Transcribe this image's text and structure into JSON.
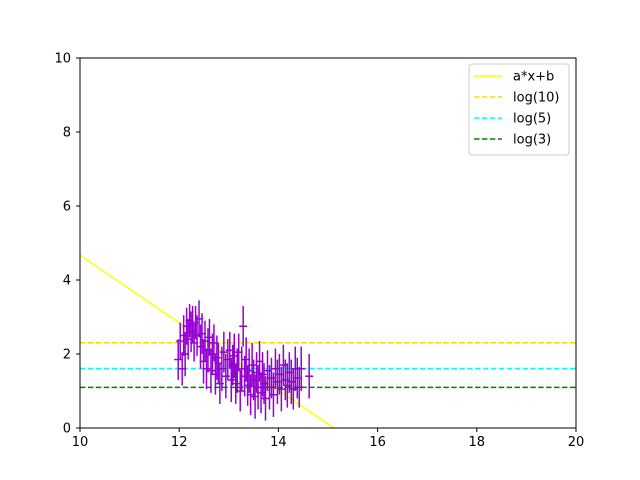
{
  "chart_data": {
    "type": "scatter",
    "title": "",
    "xlabel": "",
    "ylabel": "",
    "xlim": [
      10,
      20
    ],
    "ylim": [
      0,
      10
    ],
    "xticks": [
      "10",
      "12",
      "14",
      "16",
      "18",
      "20"
    ],
    "yticks": [
      "0",
      "2",
      "4",
      "6",
      "8",
      "10"
    ],
    "grid": false,
    "legend_position": "top-right",
    "colors": {
      "fit": "#ffff00",
      "log10": "#ffd700",
      "log5": "#00ffff",
      "log3": "#008000",
      "points": "#9400d3"
    },
    "series": [
      {
        "name": "a*x+b",
        "kind": "line",
        "style": "solid",
        "color": "#ffff00",
        "x": [
          10,
          15.12
        ],
        "y": [
          4.67,
          0
        ]
      },
      {
        "name": "log(10)",
        "kind": "hline",
        "style": "dashed",
        "color": "#ffd700",
        "y": 2.303
      },
      {
        "name": "log(5)",
        "kind": "hline",
        "style": "dashed",
        "color": "#00ffff",
        "y": 1.609
      },
      {
        "name": "log(3)",
        "kind": "hline",
        "style": "dashed",
        "color": "#008000",
        "y": 1.099
      }
    ],
    "points": [
      {
        "x": 11.98,
        "y": 1.85,
        "err": 0.55
      },
      {
        "x": 12.02,
        "y": 2.35,
        "err": 0.5
      },
      {
        "x": 12.06,
        "y": 1.6,
        "err": 0.45
      },
      {
        "x": 12.09,
        "y": 2.5,
        "err": 0.55
      },
      {
        "x": 12.12,
        "y": 2.0,
        "err": 0.6
      },
      {
        "x": 12.15,
        "y": 2.75,
        "err": 0.5
      },
      {
        "x": 12.18,
        "y": 2.4,
        "err": 0.55
      },
      {
        "x": 12.21,
        "y": 2.9,
        "err": 0.45
      },
      {
        "x": 12.24,
        "y": 2.6,
        "err": 0.55
      },
      {
        "x": 12.27,
        "y": 2.8,
        "err": 0.5
      },
      {
        "x": 12.3,
        "y": 2.3,
        "err": 0.5
      },
      {
        "x": 12.33,
        "y": 2.85,
        "err": 0.45
      },
      {
        "x": 12.36,
        "y": 2.5,
        "err": 0.55
      },
      {
        "x": 12.4,
        "y": 2.95,
        "err": 0.5
      },
      {
        "x": 12.43,
        "y": 2.2,
        "err": 0.6
      },
      {
        "x": 12.46,
        "y": 2.55,
        "err": 0.55
      },
      {
        "x": 12.49,
        "y": 1.8,
        "err": 0.6
      },
      {
        "x": 12.52,
        "y": 2.35,
        "err": 0.55
      },
      {
        "x": 12.55,
        "y": 1.6,
        "err": 0.55
      },
      {
        "x": 12.58,
        "y": 2.1,
        "err": 0.6
      },
      {
        "x": 12.61,
        "y": 2.45,
        "err": 0.5
      },
      {
        "x": 12.64,
        "y": 1.55,
        "err": 0.6
      },
      {
        "x": 12.67,
        "y": 2.0,
        "err": 0.55
      },
      {
        "x": 12.7,
        "y": 2.3,
        "err": 0.5
      },
      {
        "x": 12.73,
        "y": 1.45,
        "err": 0.55
      },
      {
        "x": 12.76,
        "y": 1.9,
        "err": 0.6
      },
      {
        "x": 12.79,
        "y": 1.75,
        "err": 0.55
      },
      {
        "x": 12.82,
        "y": 1.2,
        "err": 0.55
      },
      {
        "x": 12.86,
        "y": 1.6,
        "err": 0.6
      },
      {
        "x": 12.9,
        "y": 2.05,
        "err": 0.55
      },
      {
        "x": 12.94,
        "y": 1.4,
        "err": 0.6
      },
      {
        "x": 12.98,
        "y": 1.85,
        "err": 0.55
      },
      {
        "x": 13.02,
        "y": 2.1,
        "err": 0.5
      },
      {
        "x": 13.05,
        "y": 1.3,
        "err": 0.6
      },
      {
        "x": 13.08,
        "y": 1.7,
        "err": 0.55
      },
      {
        "x": 13.11,
        "y": 1.95,
        "err": 0.6
      },
      {
        "x": 13.14,
        "y": 1.2,
        "err": 0.55
      },
      {
        "x": 13.17,
        "y": 1.55,
        "err": 0.6
      },
      {
        "x": 13.2,
        "y": 2.05,
        "err": 0.5
      },
      {
        "x": 13.23,
        "y": 1.0,
        "err": 0.55
      },
      {
        "x": 13.26,
        "y": 1.6,
        "err": 0.6
      },
      {
        "x": 13.29,
        "y": 2.75,
        "err": 0.55
      },
      {
        "x": 13.32,
        "y": 1.4,
        "err": 0.55
      },
      {
        "x": 13.35,
        "y": 1.85,
        "err": 0.6
      },
      {
        "x": 13.38,
        "y": 1.15,
        "err": 0.55
      },
      {
        "x": 13.41,
        "y": 1.55,
        "err": 0.6
      },
      {
        "x": 13.44,
        "y": 0.9,
        "err": 0.55
      },
      {
        "x": 13.47,
        "y": 1.7,
        "err": 0.6
      },
      {
        "x": 13.5,
        "y": 1.3,
        "err": 0.55
      },
      {
        "x": 13.53,
        "y": 0.85,
        "err": 0.6
      },
      {
        "x": 13.56,
        "y": 1.5,
        "err": 0.55
      },
      {
        "x": 13.59,
        "y": 1.1,
        "err": 0.6
      },
      {
        "x": 13.62,
        "y": 1.8,
        "err": 0.55
      },
      {
        "x": 13.65,
        "y": 0.95,
        "err": 0.55
      },
      {
        "x": 13.68,
        "y": 1.45,
        "err": 0.6
      },
      {
        "x": 13.71,
        "y": 1.2,
        "err": 0.55
      },
      {
        "x": 13.74,
        "y": 0.8,
        "err": 0.6
      },
      {
        "x": 13.78,
        "y": 1.55,
        "err": 0.55
      },
      {
        "x": 13.82,
        "y": 1.1,
        "err": 0.6
      },
      {
        "x": 13.86,
        "y": 1.35,
        "err": 0.55
      },
      {
        "x": 13.9,
        "y": 0.9,
        "err": 0.6
      },
      {
        "x": 13.94,
        "y": 1.6,
        "err": 0.55
      },
      {
        "x": 13.98,
        "y": 1.25,
        "err": 0.6
      },
      {
        "x": 14.02,
        "y": 1.45,
        "err": 0.55
      },
      {
        "x": 14.06,
        "y": 1.05,
        "err": 0.6
      },
      {
        "x": 14.1,
        "y": 1.7,
        "err": 0.55
      },
      {
        "x": 14.14,
        "y": 1.3,
        "err": 0.55
      },
      {
        "x": 14.18,
        "y": 1.15,
        "err": 0.6
      },
      {
        "x": 14.22,
        "y": 1.5,
        "err": 0.55
      },
      {
        "x": 14.26,
        "y": 1.25,
        "err": 0.6
      },
      {
        "x": 14.3,
        "y": 1.05,
        "err": 0.55
      },
      {
        "x": 14.34,
        "y": 1.6,
        "err": 0.6
      },
      {
        "x": 14.38,
        "y": 1.35,
        "err": 0.55
      },
      {
        "x": 14.42,
        "y": 1.1,
        "err": 0.55
      },
      {
        "x": 14.46,
        "y": 1.6,
        "err": 0.6
      },
      {
        "x": 14.62,
        "y": 1.4,
        "err": 0.6
      }
    ]
  }
}
